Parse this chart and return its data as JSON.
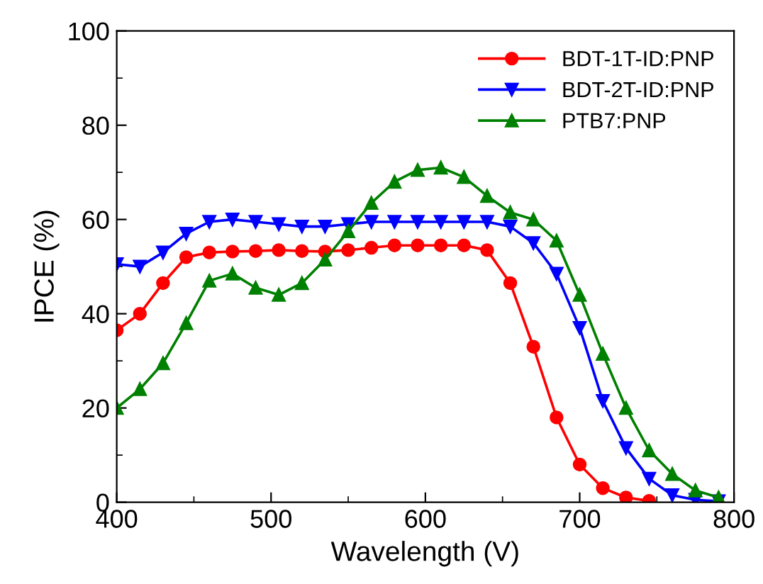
{
  "chart_data": {
    "type": "line",
    "xlabel": "Wavelength (V)",
    "ylabel": "IPCE (%)",
    "xlim": [
      400,
      800
    ],
    "ylim": [
      0,
      100
    ],
    "xticks": [
      400,
      500,
      600,
      700,
      800
    ],
    "yticks": [
      0,
      20,
      40,
      60,
      80,
      100
    ],
    "legend": "top right",
    "grid": false,
    "line_style": "solid",
    "series": [
      {
        "name": "BDT-1T-ID:PNP",
        "color": "#ff0000",
        "marker": "circle",
        "x": [
          400,
          415,
          430,
          445,
          460,
          475,
          490,
          505,
          520,
          535,
          550,
          565,
          580,
          595,
          610,
          625,
          640,
          655,
          670,
          685,
          700,
          715,
          730,
          745
        ],
        "values": [
          36.5,
          40,
          46.5,
          52,
          53,
          53.2,
          53.3,
          53.5,
          53.3,
          53.2,
          53.5,
          54,
          54.5,
          54.5,
          54.5,
          54.5,
          53.5,
          46.5,
          33,
          18,
          8,
          3,
          1,
          0.3
        ]
      },
      {
        "name": "BDT-2T-ID:PNP",
        "color": "#0000ff",
        "marker": "triangle_down",
        "x": [
          400,
          415,
          430,
          445,
          460,
          475,
          490,
          505,
          520,
          535,
          550,
          565,
          580,
          595,
          610,
          625,
          640,
          655,
          670,
          685,
          700,
          715,
          730,
          745,
          760,
          775,
          790
        ],
        "values": [
          50.5,
          50,
          53,
          57,
          59.5,
          60,
          59.5,
          59,
          58.5,
          58.5,
          59,
          59.5,
          59.5,
          59.5,
          59.5,
          59.5,
          59.5,
          58.5,
          55,
          48.5,
          37,
          21.5,
          11.5,
          5,
          1.5,
          0.5,
          0.2
        ]
      },
      {
        "name": "PTB7:PNP",
        "color": "#008000",
        "marker": "triangle",
        "x": [
          400,
          415,
          430,
          445,
          460,
          475,
          490,
          505,
          520,
          535,
          550,
          565,
          580,
          595,
          610,
          625,
          640,
          655,
          670,
          685,
          700,
          715,
          730,
          745,
          760,
          775,
          790
        ],
        "values": [
          20,
          24,
          29.5,
          38,
          47,
          48.5,
          45.5,
          44,
          46.5,
          51.5,
          57.5,
          63.5,
          68,
          70.5,
          71,
          69,
          65,
          61.5,
          60,
          55.5,
          44,
          31.5,
          20,
          11,
          6,
          2.5,
          1
        ]
      }
    ]
  }
}
